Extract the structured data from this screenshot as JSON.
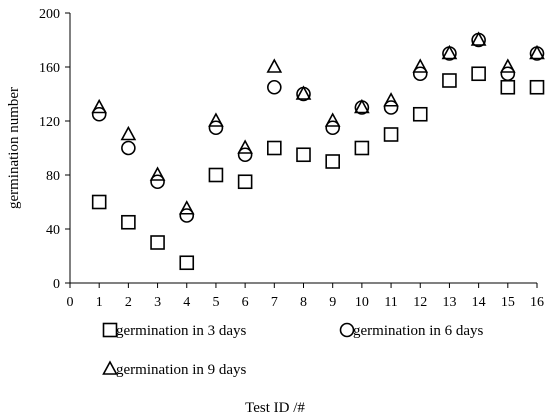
{
  "chart_data": {
    "type": "scatter",
    "xlabel": "Test ID /#",
    "ylabel": "germination number",
    "xlim": [
      0,
      16
    ],
    "ylim": [
      0,
      200
    ],
    "xticks": [
      0,
      1,
      2,
      3,
      4,
      5,
      6,
      7,
      8,
      9,
      10,
      11,
      12,
      13,
      14,
      15,
      16
    ],
    "yticks": [
      0,
      40,
      80,
      120,
      160,
      200
    ],
    "grid": false,
    "legend_position": "bottom",
    "x": [
      1,
      2,
      3,
      4,
      5,
      6,
      7,
      8,
      9,
      10,
      11,
      12,
      13,
      14,
      15,
      16
    ],
    "series": [
      {
        "name": "germination in 3 days",
        "marker": "square",
        "values": [
          60,
          45,
          30,
          15,
          80,
          75,
          100,
          95,
          90,
          100,
          110,
          125,
          150,
          155,
          145,
          145
        ]
      },
      {
        "name": "germination in 6 days",
        "marker": "circle",
        "values": [
          125,
          100,
          75,
          50,
          115,
          95,
          145,
          140,
          115,
          130,
          130,
          155,
          170,
          180,
          155,
          170
        ]
      },
      {
        "name": "germination in 9 days",
        "marker": "triangle",
        "values": [
          130,
          110,
          80,
          55,
          120,
          100,
          160,
          140,
          120,
          130,
          135,
          160,
          170,
          180,
          160,
          170
        ]
      }
    ]
  }
}
